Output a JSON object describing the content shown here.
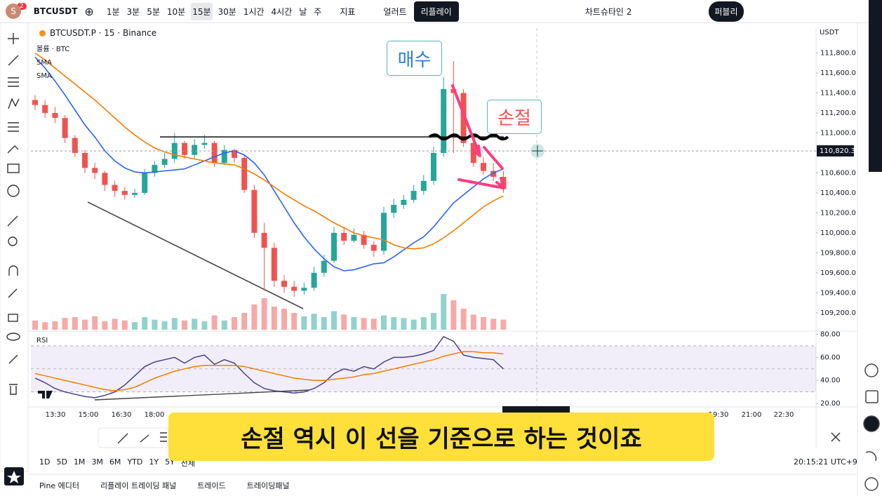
{
  "toolbar": {
    "avatar": "S",
    "badge": "2",
    "symbol": "BTCUSDT",
    "intervals": [
      "1분",
      "3분",
      "5분",
      "10분",
      "15분",
      "30분",
      "1시간",
      "4시간",
      "날",
      "주"
    ],
    "indicators": "지표",
    "alert": "얼러트",
    "replay": "리플레이",
    "layout": "차트슈타인 2",
    "publish": "퍼블리"
  },
  "chart_data": [
    {
      "type": "candlestick",
      "title": "BTCUSDT.P · 15 · Binance",
      "volume_label": "볼륨 · BTC",
      "currency": "USDT",
      "up_color": "#26a69a",
      "down_color": "#ef5350",
      "open": [
        111330,
        111280,
        111200,
        111150,
        110950,
        110800,
        110650,
        110600,
        110480,
        110420,
        110380,
        110400,
        110600,
        110680,
        110740,
        110900,
        110780,
        110880,
        110900,
        110700,
        110830,
        110750,
        110430,
        110000,
        109850,
        109520,
        109460,
        109420,
        109450,
        109600,
        109720,
        110000,
        109920,
        109980,
        109880,
        109820,
        110200,
        110280,
        110330,
        110420,
        110520,
        110800,
        111440,
        111400,
        110900,
        110700,
        110620,
        110560
      ],
      "high": [
        111380,
        111330,
        111260,
        111180,
        110980,
        110830,
        110700,
        110620,
        110520,
        110460,
        110440,
        110640,
        110720,
        110800,
        111000,
        110920,
        110940,
        110980,
        110920,
        110880,
        110840,
        110780,
        110480,
        110100,
        109900,
        109580,
        109520,
        109500,
        109660,
        109780,
        110060,
        110060,
        110040,
        110020,
        109920,
        110260,
        110340,
        110380,
        110480,
        110580,
        110860,
        111560,
        111720,
        111440,
        110960,
        110760,
        110700,
        110620
      ],
      "low": [
        111230,
        111150,
        111100,
        110900,
        110760,
        110600,
        110540,
        110420,
        110360,
        110330,
        110350,
        110380,
        110560,
        110650,
        110700,
        110740,
        110740,
        110840,
        110660,
        110680,
        110700,
        110400,
        109950,
        109420,
        109460,
        109400,
        109360,
        109380,
        109420,
        109560,
        109700,
        109880,
        109900,
        109840,
        109760,
        109780,
        110150,
        110240,
        110300,
        110380,
        110480,
        110760,
        110800,
        110860,
        110660,
        110580,
        110520,
        110400
      ],
      "close": [
        111280,
        111200,
        111150,
        110950,
        110800,
        110650,
        110600,
        110480,
        110420,
        110380,
        110400,
        110600,
        110680,
        110740,
        110900,
        110780,
        110880,
        110900,
        110700,
        110830,
        110750,
        110430,
        110000,
        109850,
        109520,
        109460,
        109420,
        109450,
        109600,
        109720,
        110000,
        109920,
        109980,
        109880,
        109820,
        110200,
        110280,
        110330,
        110420,
        110520,
        110800,
        111440,
        111400,
        110900,
        110700,
        110620,
        110560,
        110440
      ],
      "volume": [
        22,
        18,
        20,
        28,
        30,
        24,
        32,
        20,
        26,
        22,
        18,
        30,
        24,
        20,
        28,
        22,
        26,
        20,
        34,
        22,
        30,
        40,
        60,
        75,
        55,
        50,
        40,
        32,
        38,
        30,
        44,
        36,
        30,
        28,
        26,
        34,
        30,
        28,
        24,
        30,
        40,
        85,
        70,
        50,
        36,
        30,
        26,
        24
      ],
      "vlim": [
        0,
        100
      ],
      "series": [
        {
          "name": "SMA",
          "color": "#2962ff",
          "values": [
            111760,
            111650,
            111520,
            111380,
            111230,
            111080,
            110960,
            110820,
            110720,
            110650,
            110610,
            110600,
            110610,
            110620,
            110630,
            110640,
            110680,
            110720,
            110760,
            110800,
            110820,
            110780,
            110700,
            110580,
            110420,
            110260,
            110100,
            109960,
            109840,
            109740,
            109660,
            109620,
            109630,
            109660,
            109690,
            109700,
            109760,
            109830,
            109900,
            109960,
            110060,
            110180,
            110300,
            110380,
            110460,
            110540,
            110600,
            110640
          ]
        },
        {
          "name": "SMA",
          "color": "#f57c00",
          "values": [
            111800,
            111730,
            111650,
            111570,
            111490,
            111410,
            111330,
            111240,
            111150,
            111060,
            110980,
            110910,
            110850,
            110810,
            110780,
            110760,
            110740,
            110720,
            110700,
            110690,
            110680,
            110640,
            110590,
            110530,
            110460,
            110390,
            110330,
            110270,
            110220,
            110160,
            110100,
            110050,
            110000,
            109970,
            109950,
            109930,
            109880,
            109850,
            109840,
            109850,
            109890,
            109950,
            110020,
            110100,
            110180,
            110260,
            110320,
            110370
          ]
        }
      ],
      "ylim": [
        109030,
        112050
      ],
      "yticks": [
        {
          "value": 109200,
          "label": "109,200.0"
        },
        {
          "value": 109400,
          "label": "109,400.0"
        },
        {
          "value": 109600,
          "label": "109,600.0"
        },
        {
          "value": 109800,
          "label": "109,800.0"
        },
        {
          "value": 110000,
          "label": "110,000.0"
        },
        {
          "value": 110200,
          "label": "110,200.0"
        },
        {
          "value": 110400,
          "label": "110,400.0"
        },
        {
          "value": 110600,
          "label": "110,600.0"
        },
        {
          "value": 111000,
          "label": "111,000.0"
        },
        {
          "value": 111200,
          "label": "111,200.0"
        },
        {
          "value": 111400,
          "label": "111,400.0"
        },
        {
          "value": 111600,
          "label": "111,600.0"
        },
        {
          "value": 111800,
          "label": "111,800.0"
        }
      ],
      "current_price": {
        "value": 110820.3,
        "label": "110,820.3"
      },
      "level": 110960
    },
    {
      "type": "line",
      "title": "RSI",
      "series": [
        {
          "color": "#4a3f8c",
          "values": [
            42,
            38,
            33,
            30,
            28,
            26,
            25,
            27,
            30,
            36,
            44,
            52,
            56,
            58,
            60,
            55,
            60,
            62,
            54,
            58,
            55,
            46,
            38,
            33,
            31,
            30,
            29,
            30,
            33,
            38,
            46,
            50,
            48,
            52,
            50,
            56,
            60,
            60,
            61,
            63,
            66,
            78,
            74,
            62,
            60,
            59,
            58,
            50
          ]
        },
        {
          "color": "#f57c00",
          "values": [
            46,
            44,
            42,
            40,
            38,
            36,
            34,
            32,
            31,
            32,
            34,
            38,
            42,
            45,
            48,
            50,
            52,
            53,
            53,
            53,
            53,
            52,
            50,
            48,
            46,
            44,
            42,
            41,
            40,
            40,
            41,
            42,
            43,
            45,
            46,
            48,
            50,
            52,
            54,
            56,
            58,
            61,
            63,
            65,
            65,
            64,
            64,
            63
          ]
        }
      ],
      "ylim": [
        17,
        84
      ],
      "band": [
        30,
        70
      ],
      "midline": 50,
      "yticks": [
        {
          "value": 20,
          "label": "20.00"
        },
        {
          "value": 40,
          "label": "40.00"
        },
        {
          "value": 60,
          "label": "60.00"
        },
        {
          "value": 80,
          "label": "80.00"
        }
      ]
    }
  ],
  "time_labels": [
    "13:30",
    "15:00",
    "16:30",
    "18:00",
    "19:30",
    "21:00",
    "22:30"
  ],
  "annotations": {
    "buy": "매수",
    "stop": "손절"
  },
  "ranges": [
    "1D",
    "5D",
    "1M",
    "3M",
    "6M",
    "YTD",
    "1Y",
    "5Y",
    "전체"
  ],
  "clock": "20:15:21 UTC+9",
  "tabs": [
    "Pine 에디터",
    "리플레이 트레이딩 패널",
    "트레이드",
    "트레이딩패널"
  ],
  "caption": "손절 역시 이 선을 기준으로 하는 것이죠"
}
